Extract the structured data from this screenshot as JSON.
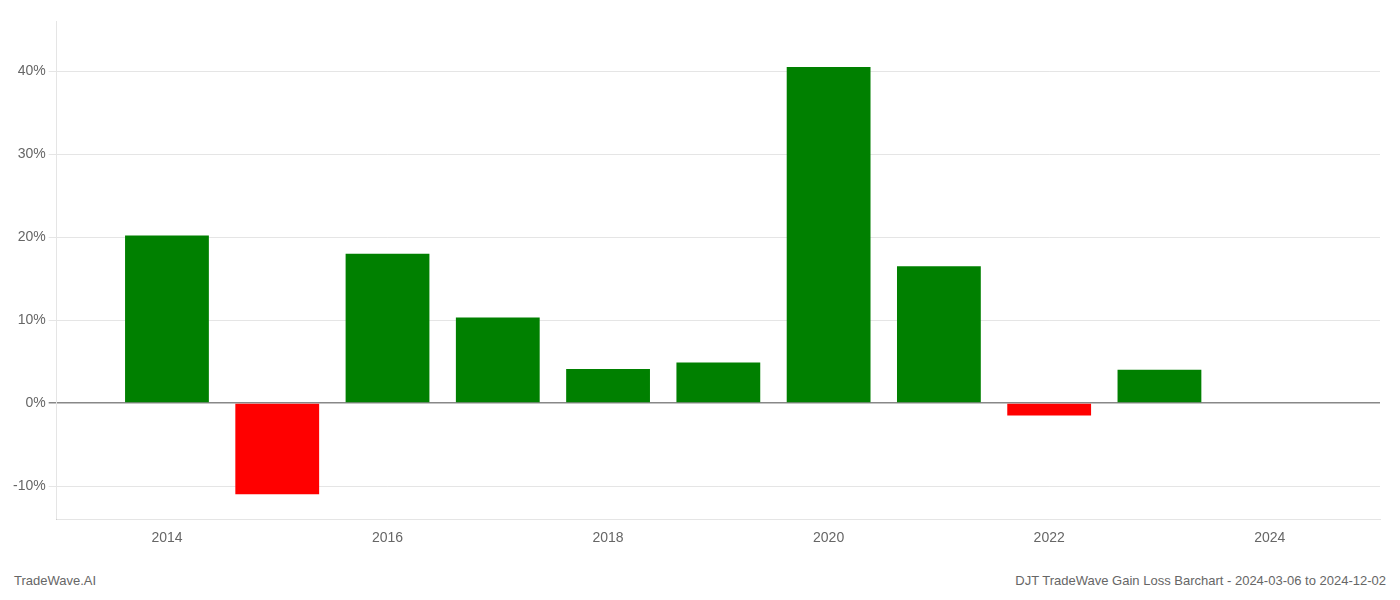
{
  "chart_data": {
    "type": "bar",
    "x": [
      2014,
      2015,
      2016,
      2017,
      2018,
      2019,
      2020,
      2021,
      2022,
      2023
    ],
    "values": [
      20.2,
      -11.0,
      18.0,
      10.3,
      4.1,
      4.9,
      40.5,
      16.5,
      -1.5,
      4.0
    ],
    "colors": [
      "#008000",
      "#ff0000",
      "#008000",
      "#008000",
      "#008000",
      "#008000",
      "#008000",
      "#008000",
      "#ff0000",
      "#008000"
    ],
    "xlim": [
      2013.0,
      2025.0
    ],
    "xticks": [
      2014,
      2016,
      2018,
      2020,
      2022,
      2024
    ],
    "ylim": [
      -14,
      46
    ],
    "yticks": [
      {
        "value": -10,
        "label": "-10%"
      },
      {
        "value": 0,
        "label": "0%"
      },
      {
        "value": 10,
        "label": "10%"
      },
      {
        "value": 20,
        "label": "20%"
      },
      {
        "value": 30,
        "label": "30%"
      },
      {
        "value": 40,
        "label": "40%"
      }
    ],
    "grid": "y",
    "annotations": [
      "TradeWave.AI",
      "DJT TradeWave Gain Loss Barchart - 2024-03-06 to 2024-12-02"
    ]
  }
}
